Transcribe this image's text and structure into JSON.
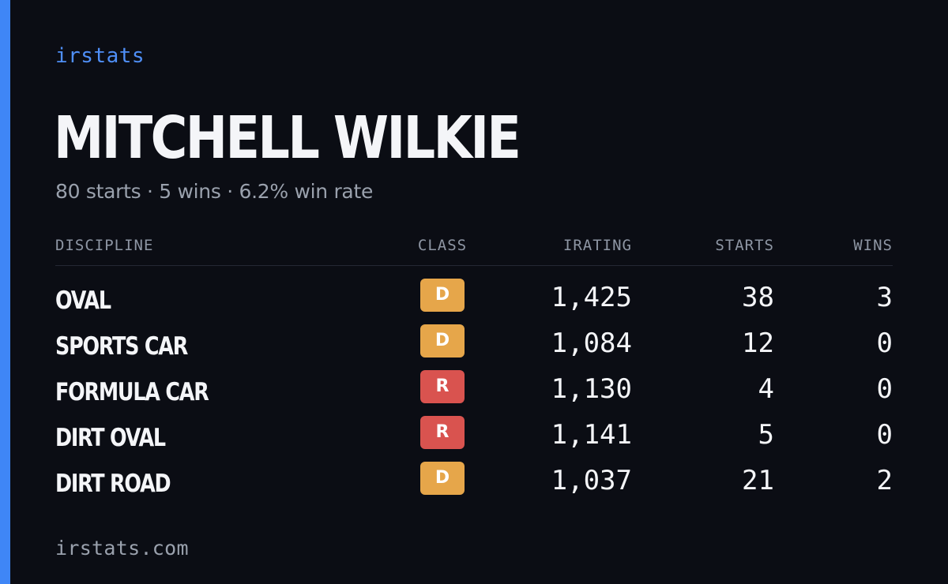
{
  "brand": "irstats",
  "driver": {
    "name": "MITCHELL WILKIE",
    "summary": "80 starts · 5 wins · 6.2% win rate"
  },
  "table": {
    "headers": {
      "discipline": "DISCIPLINE",
      "class": "CLASS",
      "irating": "IRATING",
      "starts": "STARTS",
      "wins": "WINS"
    },
    "rows": [
      {
        "discipline": "OVAL",
        "class": "D",
        "class_color": "#e6a64a",
        "irating": "1,425",
        "starts": "38",
        "wins": "3"
      },
      {
        "discipline": "SPORTS CAR",
        "class": "D",
        "class_color": "#e6a64a",
        "irating": "1,084",
        "starts": "12",
        "wins": "0"
      },
      {
        "discipline": "FORMULA CAR",
        "class": "R",
        "class_color": "#d9534f",
        "irating": "1,130",
        "starts": "4",
        "wins": "0"
      },
      {
        "discipline": "DIRT OVAL",
        "class": "R",
        "class_color": "#d9534f",
        "irating": "1,141",
        "starts": "5",
        "wins": "0"
      },
      {
        "discipline": "DIRT ROAD",
        "class": "D",
        "class_color": "#e6a64a",
        "irating": "1,037",
        "starts": "21",
        "wins": "2"
      }
    ]
  },
  "footer": "irstats.com",
  "colors": {
    "accent": "#3f86f6",
    "background": "#0b0d14"
  }
}
